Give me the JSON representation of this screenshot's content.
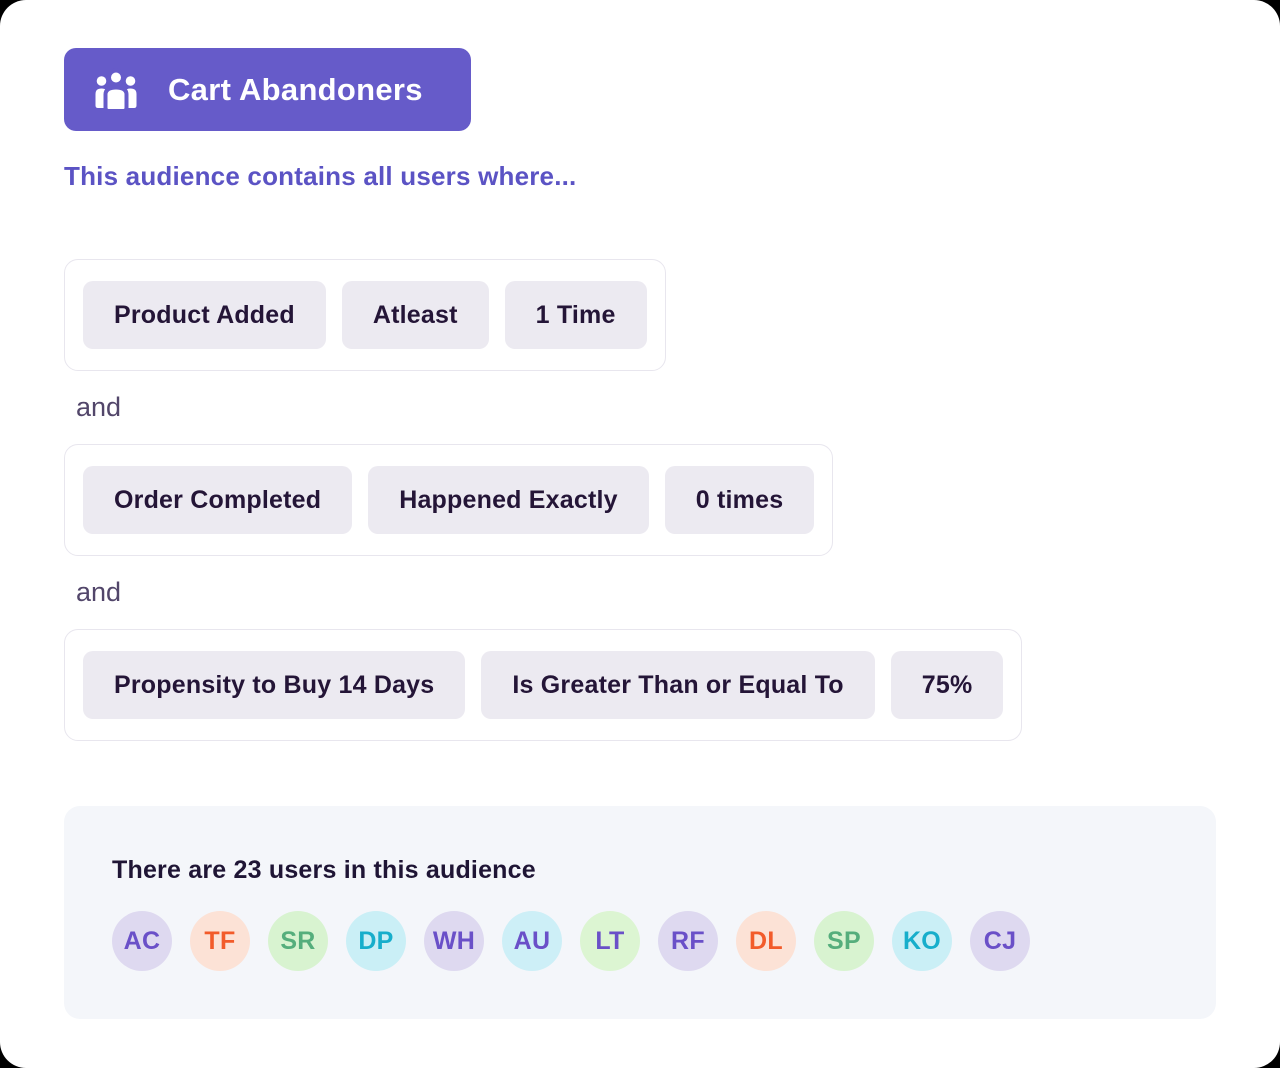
{
  "header": {
    "badge_label": "Cart Abandoners",
    "icon": "people-group-icon",
    "subtitle": "This audience contains all users where..."
  },
  "builder": {
    "connector_label": "and",
    "rows": [
      {
        "chips": [
          "Product Added",
          "Atleast",
          "1 Time"
        ]
      },
      {
        "chips": [
          "Order Completed",
          "Happened Exactly",
          "0 times"
        ]
      },
      {
        "chips": [
          "Propensity to Buy 14 Days",
          "Is Greater Than or Equal To",
          "75%"
        ]
      }
    ]
  },
  "audience_summary": {
    "title": "There are 23 users in this audience",
    "user_count": 23,
    "avatars": [
      {
        "initials": "AC",
        "bg": "#DED9F0",
        "fg": "#6A50C8"
      },
      {
        "initials": "TF",
        "bg": "#FCE2D6",
        "fg": "#F25B2A"
      },
      {
        "initials": "SR",
        "bg": "#D8F3D0",
        "fg": "#55AE7C"
      },
      {
        "initials": "DP",
        "bg": "#CAEFF6",
        "fg": "#17AECB"
      },
      {
        "initials": "WH",
        "bg": "#DED9F0",
        "fg": "#6A50C8"
      },
      {
        "initials": "AU",
        "bg": "#CDEFF7",
        "fg": "#6A50C8"
      },
      {
        "initials": "LT",
        "bg": "#DCF5D2",
        "fg": "#6A50C8"
      },
      {
        "initials": "RF",
        "bg": "#DED9F0",
        "fg": "#6A50C8"
      },
      {
        "initials": "DL",
        "bg": "#FCE2D6",
        "fg": "#F25B2A"
      },
      {
        "initials": "SP",
        "bg": "#D8F3D0",
        "fg": "#55AE7C"
      },
      {
        "initials": "KO",
        "bg": "#CAEFF6",
        "fg": "#17AECB"
      },
      {
        "initials": "CJ",
        "bg": "#DED9F0",
        "fg": "#6A50C8"
      }
    ]
  },
  "theme": {
    "accent_purple": "#665BC9",
    "subtitle_purple": "#5B53C4",
    "chip_background": "#ECEAF1",
    "chip_text": "#241537",
    "panel_background": "#F4F6FA"
  }
}
